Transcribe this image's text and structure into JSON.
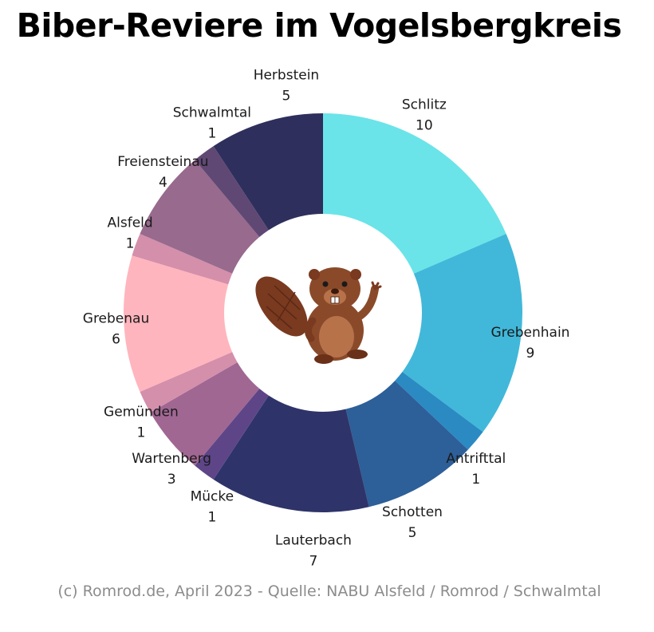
{
  "chart_data": {
    "type": "donut",
    "title": "Biber-Reviere im Vogelsbergkreis",
    "categories": [
      "Schlitz",
      "Grebenhain",
      "Antrifttal",
      "Schotten",
      "Lauterbach",
      "Mücke",
      "Wartenberg",
      "Gemünden",
      "Grebenau",
      "Alsfeld",
      "Freiensteinau",
      "Schwalmtal",
      "Herbstein"
    ],
    "values": [
      10,
      9,
      1,
      5,
      7,
      1,
      3,
      1,
      6,
      1,
      4,
      1,
      5
    ],
    "colors": [
      "#6ae4e8",
      "#41b8d9",
      "#2b8ac2",
      "#2d5f99",
      "#2e3469",
      "#5e4588",
      "#a06793",
      "#d48fab",
      "#ffb5bd",
      "#d48fab",
      "#986a8d",
      "#604874",
      "#2e2f5c"
    ],
    "center_icon": "beaver-icon"
  },
  "footer": "(c) Romrod.de, April 2023 - Quelle: NABU Alsfeld / Romrod / Schwalmtal"
}
